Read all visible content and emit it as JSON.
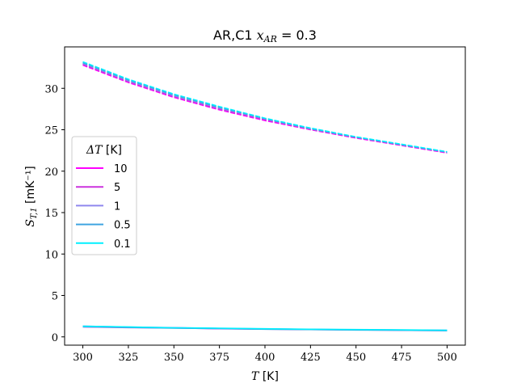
{
  "chart_data": {
    "type": "line",
    "title": "AR,C1 x_AR = 0.3",
    "title_parts": {
      "prefix": "AR,C1 ",
      "var": "x",
      "sub": "AR",
      "suffix": " = 0.3"
    },
    "xlabel": "T [K]",
    "xlabel_parts": {
      "var": "T",
      "unit": " [K]"
    },
    "ylabel": "S_T,1 [mK⁻¹]",
    "ylabel_parts": {
      "var": "S",
      "sub": "T,1",
      "unit": " [mK⁻¹]"
    },
    "xlim": [
      290,
      510
    ],
    "ylim": [
      -1,
      35
    ],
    "xticks": [
      300,
      325,
      350,
      375,
      400,
      425,
      450,
      475,
      500
    ],
    "yticks": [
      0,
      5,
      10,
      15,
      20,
      25,
      30
    ],
    "grid": false,
    "legend": {
      "placement": "center-left",
      "title": "ΔT [K]",
      "title_parts": {
        "var": "ΔT",
        "unit": " [K]"
      }
    },
    "x": [
      300,
      325,
      350,
      375,
      400,
      425,
      450,
      475,
      500
    ],
    "series": [
      {
        "name": "10",
        "color": "#ff00ff",
        "upper": [
          32.8,
          30.7,
          28.9,
          27.4,
          26.1,
          25.0,
          24.0,
          23.1,
          22.2
        ],
        "lower": [
          1.25,
          1.15,
          1.1,
          1.0,
          0.95,
          0.9,
          0.85,
          0.82,
          0.78
        ]
      },
      {
        "name": "5",
        "color": "#cc33dd",
        "upper": [
          32.9,
          30.8,
          29.0,
          27.5,
          26.2,
          25.05,
          24.05,
          23.15,
          22.25
        ],
        "lower": [
          1.2,
          1.12,
          1.08,
          0.98,
          0.93,
          0.88,
          0.84,
          0.8,
          0.76
        ]
      },
      {
        "name": "1",
        "color": "#8f87ee",
        "upper": [
          33.0,
          30.9,
          29.1,
          27.6,
          26.3,
          25.1,
          24.1,
          23.2,
          22.3
        ],
        "lower": [
          1.3,
          1.18,
          1.12,
          1.02,
          0.96,
          0.9,
          0.86,
          0.82,
          0.8
        ]
      },
      {
        "name": "0.5",
        "color": "#3fa4e0",
        "upper": [
          33.1,
          31.0,
          29.2,
          27.7,
          26.35,
          25.15,
          24.1,
          23.2,
          22.3
        ],
        "lower": [
          1.22,
          1.14,
          1.05,
          1.0,
          0.92,
          0.88,
          0.82,
          0.8,
          0.75
        ]
      },
      {
        "name": "0.1",
        "color": "#00f0ff",
        "upper": [
          33.2,
          31.1,
          29.3,
          27.8,
          26.4,
          25.2,
          24.15,
          23.25,
          22.35
        ],
        "lower": [
          1.28,
          1.2,
          1.1,
          1.05,
          0.98,
          0.92,
          0.88,
          0.84,
          0.8
        ]
      }
    ]
  }
}
